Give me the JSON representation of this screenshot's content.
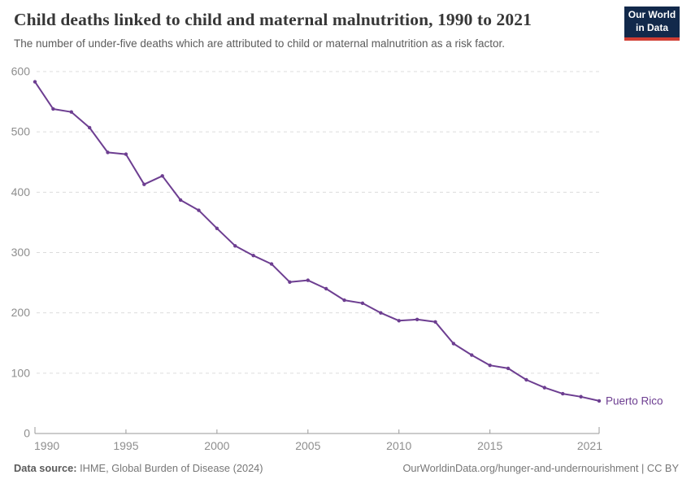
{
  "header": {
    "title": "Child deaths linked to child and maternal malnutrition, 1990 to 2021",
    "subtitle": "The number of under-five deaths which are attributed to child or maternal malnutrition as a risk factor."
  },
  "logo": {
    "line1": "Our World",
    "line2": "in Data",
    "bg_color": "#12294b",
    "accent_color": "#d13d33"
  },
  "chart_data": {
    "type": "line",
    "title": "Child deaths linked to child and maternal malnutrition, 1990 to 2021",
    "xlabel": "",
    "ylabel": "",
    "xlim": [
      1990,
      2021
    ],
    "ylim": [
      0,
      600
    ],
    "xticks": [
      1990,
      1995,
      2000,
      2005,
      2010,
      2015,
      2021
    ],
    "yticks": [
      0,
      100,
      200,
      300,
      400,
      500,
      600
    ],
    "grid": "horizontal-dashed",
    "legend_position": "end-of-line-label",
    "x": [
      1990,
      1991,
      1992,
      1993,
      1994,
      1995,
      1996,
      1997,
      1998,
      1999,
      2000,
      2001,
      2002,
      2003,
      2004,
      2005,
      2006,
      2007,
      2008,
      2009,
      2010,
      2011,
      2012,
      2013,
      2014,
      2015,
      2016,
      2017,
      2018,
      2019,
      2020,
      2021
    ],
    "series": [
      {
        "name": "Puerto Rico",
        "color": "#6d3e91",
        "values": [
          583,
          538,
          533,
          507,
          466,
          463,
          413,
          427,
          387,
          370,
          340,
          311,
          295,
          281,
          251,
          254,
          240,
          221,
          216,
          200,
          187,
          189,
          185,
          149,
          130,
          113,
          108,
          89,
          76,
          66,
          61,
          54
        ]
      }
    ],
    "end_label": "Puerto Rico",
    "grid_color": "#dcdcdc",
    "axis_color": "#9a9a9a",
    "tick_label_color": "#8e8e8e"
  },
  "footer": {
    "source_label": "Data source:",
    "source_text": " IHME, Global Burden of Disease (2024)",
    "right_text": "OurWorldinData.org/hunger-and-undernourishment | CC BY"
  }
}
